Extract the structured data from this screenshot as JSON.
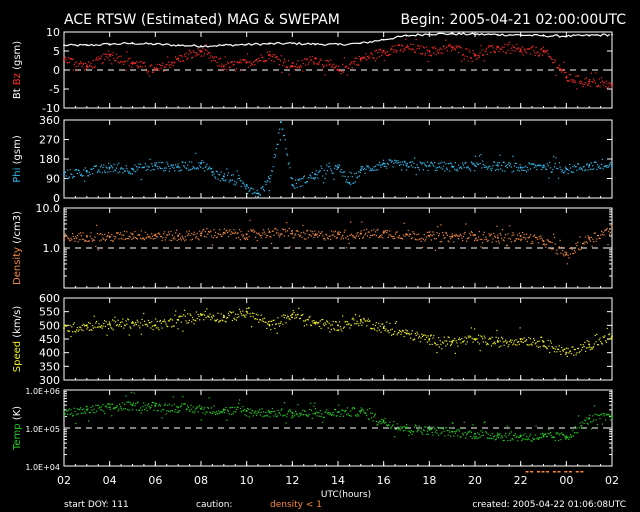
{
  "header": {
    "title": "ACE RTSW (Estimated) MAG & SWEPAM",
    "begin": "Begin: 2005-04-21 02:00:00UTC"
  },
  "footer": {
    "start_doy": "start DOY: 111",
    "caution_label": "caution:",
    "caution_value": "density < 1",
    "created": "created: 2005-04-22 01:06:08UTC"
  },
  "colors": {
    "background": "#000000",
    "frame": "#ffffff",
    "bt": "#ffffff",
    "bz": "#ff2a2a",
    "phi": "#33bbee",
    "density": "#ee8844",
    "speed": "#eeee22",
    "temp": "#22cc22",
    "caution": "#ff8833"
  },
  "chart_data": [
    {
      "type": "line",
      "id": "mag",
      "ylabel_parts": [
        {
          "text": "Bt",
          "color": "#ffffff"
        },
        {
          "text": "Bz",
          "color": "#ff2a2a"
        },
        {
          "text": "(gsm)",
          "color": "#ffffff"
        }
      ],
      "ylim": [
        -10,
        10
      ],
      "yticks": [
        -10,
        -5,
        0,
        5,
        10
      ],
      "ytick_labels": [
        "-10",
        "-5",
        "0",
        "5",
        "10"
      ],
      "reference_line": 0,
      "series": [
        {
          "key": "bt",
          "style": "line",
          "color": "#ffffff",
          "x": [
            0,
            1,
            2,
            3,
            4,
            5,
            6,
            7,
            8,
            9,
            10,
            11,
            12,
            13,
            14,
            15,
            16,
            17,
            18,
            19,
            20,
            21,
            22,
            23,
            24
          ],
          "values": [
            6.5,
            6.5,
            6.8,
            7.0,
            6.8,
            6.5,
            6.3,
            6.5,
            6.7,
            6.9,
            7.0,
            6.8,
            6.7,
            7.0,
            8.0,
            9.0,
            9.5,
            9.5,
            9.4,
            9.3,
            9.2,
            9.0,
            8.9,
            9.1,
            9.3
          ]
        },
        {
          "key": "bz",
          "style": "dots",
          "color": "#ff2a2a",
          "x": [
            0,
            1,
            2,
            3,
            4,
            5,
            6,
            7,
            8,
            9,
            10,
            11,
            12,
            13,
            14,
            15,
            16,
            17,
            18,
            19,
            20,
            21,
            21.8,
            22,
            23,
            24
          ],
          "values": [
            3,
            1,
            4,
            2,
            0,
            3,
            5,
            1,
            2,
            4,
            1,
            3,
            0,
            3,
            5,
            6,
            5,
            6,
            4,
            6,
            5,
            5,
            0,
            -2,
            -3,
            -4
          ]
        }
      ]
    },
    {
      "type": "scatter",
      "id": "phi",
      "ylabel_parts": [
        {
          "text": "Phi",
          "color": "#33bbee"
        },
        {
          "text": "(gsm)",
          "color": "#ffffff"
        }
      ],
      "ylim": [
        0,
        360
      ],
      "yticks": [
        0,
        90,
        180,
        270,
        360
      ],
      "ytick_labels": [
        "0",
        "90",
        "180",
        "270",
        "360"
      ],
      "series": [
        {
          "key": "phi",
          "style": "dots",
          "color": "#33bbee",
          "x": [
            0,
            1,
            2,
            3,
            4,
            5,
            6,
            6.5,
            7,
            8,
            8.5,
            9,
            9.5,
            10,
            11,
            12,
            12.5,
            13,
            14,
            15,
            16,
            17,
            18,
            19,
            20,
            21,
            22,
            23,
            24
          ],
          "values": [
            110,
            125,
            140,
            135,
            150,
            145,
            160,
            120,
            100,
            60,
            20,
            90,
            350,
            60,
            110,
            140,
            70,
            130,
            160,
            150,
            150,
            145,
            150,
            150,
            140,
            150,
            135,
            150,
            145
          ]
        }
      ]
    },
    {
      "type": "scatter",
      "id": "density",
      "ylabel_parts": [
        {
          "text": "Density",
          "color": "#ee8844"
        },
        {
          "text": "(/cm3)",
          "color": "#ffffff"
        }
      ],
      "yscale": "log",
      "ylim": [
        0.1,
        10
      ],
      "yticks": [
        1,
        10
      ],
      "ytick_labels": [
        "1.0",
        "10.0"
      ],
      "reference_line": 1,
      "series": [
        {
          "key": "density",
          "style": "dots",
          "color": "#ee8844",
          "x": [
            0,
            1,
            2,
            3,
            4,
            5,
            6,
            7,
            8,
            9,
            10,
            11,
            12,
            13,
            14,
            15,
            16,
            17,
            18,
            19,
            20,
            21,
            22,
            23,
            24
          ],
          "values": [
            1.8,
            2.0,
            1.9,
            2.2,
            2.1,
            2.0,
            2.3,
            2.4,
            2.2,
            2.5,
            2.3,
            2.1,
            2.2,
            2.3,
            2.4,
            2.2,
            2.0,
            1.9,
            2.1,
            1.8,
            2.0,
            1.5,
            0.7,
            1.8,
            3.0
          ]
        }
      ]
    },
    {
      "type": "scatter",
      "id": "speed",
      "ylabel_parts": [
        {
          "text": "Speed",
          "color": "#eeee22"
        },
        {
          "text": "(km/s)",
          "color": "#ffffff"
        }
      ],
      "ylim": [
        300,
        600
      ],
      "yticks": [
        300,
        350,
        400,
        450,
        500,
        550,
        600
      ],
      "ytick_labels": [
        "300",
        "350",
        "400",
        "450",
        "500",
        "550",
        "600"
      ],
      "series": [
        {
          "key": "speed",
          "style": "dots",
          "color": "#eeee22",
          "x": [
            0,
            1,
            2,
            3,
            4,
            5,
            6,
            7,
            8,
            9,
            10,
            11,
            12,
            13,
            14,
            15,
            16,
            17,
            18,
            19,
            20,
            21,
            22,
            23,
            24
          ],
          "values": [
            490,
            500,
            505,
            510,
            500,
            520,
            540,
            530,
            550,
            500,
            540,
            510,
            500,
            520,
            490,
            470,
            450,
            440,
            450,
            440,
            450,
            440,
            400,
            430,
            460
          ]
        }
      ]
    },
    {
      "type": "scatter",
      "id": "temp",
      "ylabel_parts": [
        {
          "text": "Temp",
          "color": "#22cc22"
        },
        {
          "text": "(K)",
          "color": "#ffffff"
        }
      ],
      "yscale": "log",
      "ylim": [
        10000,
        1000000
      ],
      "yticks": [
        10000,
        100000,
        1000000
      ],
      "ytick_labels": [
        "1.0E+04",
        "1.0E+05",
        "1.0E+06"
      ],
      "reference_line": 100000,
      "series": [
        {
          "key": "temp",
          "style": "dots",
          "color": "#22cc22",
          "x": [
            0,
            1,
            2,
            3,
            4,
            5,
            6,
            7,
            8,
            9,
            10,
            11,
            12,
            13,
            14,
            15,
            16,
            17,
            18,
            19,
            20,
            21,
            22,
            23,
            24
          ],
          "values": [
            250000,
            300000,
            350000,
            400000,
            380000,
            350000,
            320000,
            300000,
            280000,
            260000,
            250000,
            240000,
            260000,
            280000,
            150000,
            100000,
            90000,
            80000,
            70000,
            65000,
            60000,
            60000,
            60000,
            180000,
            200000
          ]
        }
      ]
    }
  ],
  "x_axis": {
    "label": "UTC(hours)",
    "xlim": [
      0,
      24
    ],
    "ticks": [
      0,
      2,
      4,
      6,
      8,
      10,
      12,
      14,
      16,
      18,
      20,
      22,
      24
    ],
    "tick_labels": [
      "02",
      "04",
      "06",
      "08",
      "10",
      "12",
      "14",
      "16",
      "18",
      "20",
      "22",
      "00",
      "02"
    ]
  },
  "caution_marks": {
    "color": "#ff8833",
    "x": [
      20.3,
      20.5,
      20.8,
      21.0,
      21.2,
      21.5,
      21.7,
      22.0,
      22.2,
      22.5,
      22.7
    ]
  }
}
